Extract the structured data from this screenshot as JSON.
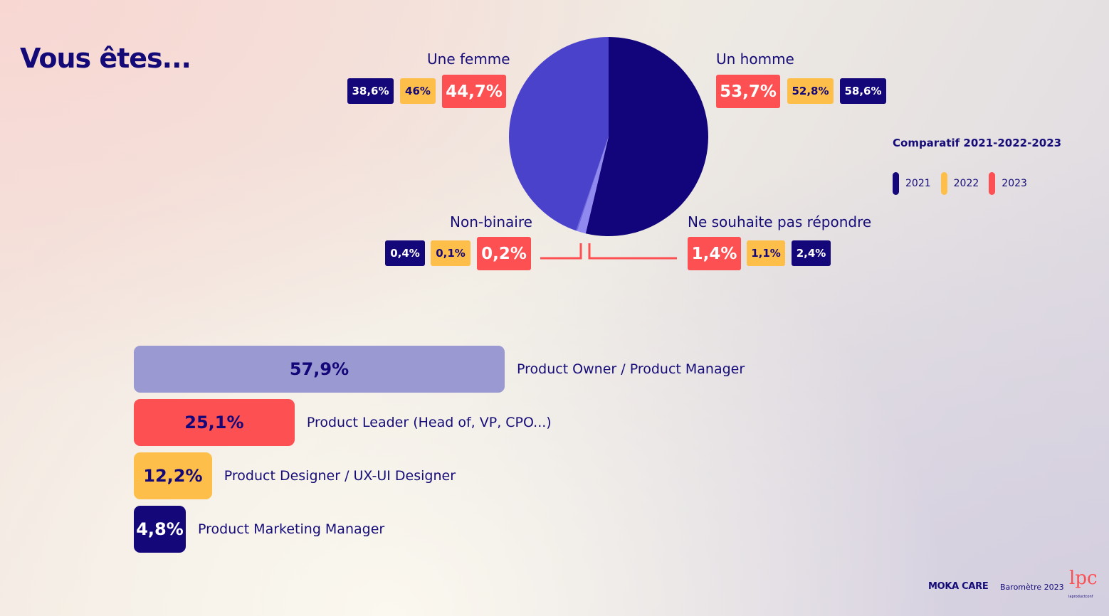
{
  "title": "Vous êtes...",
  "colors": {
    "y2021": "#14077a",
    "y2022": "#fdbf4a",
    "y2023": "#fd5052",
    "bar1": "#9b99d1"
  },
  "legend": {
    "title": "Comparatif 2021-2022-2023",
    "items": [
      "2021",
      "2022",
      "2023"
    ]
  },
  "gender": {
    "femme": {
      "label": "Une femme",
      "v2021": "38,6%",
      "v2022": "46%",
      "v2023": "44,7%"
    },
    "homme": {
      "label": "Un homme",
      "v2023": "53,7%",
      "v2022": "52,8%",
      "v2021": "58,6%"
    },
    "nonbin": {
      "label": "Non-binaire",
      "v2021": "0,4%",
      "v2022": "0,1%",
      "v2023": "0,2%"
    },
    "nesp": {
      "label": "Ne souhaite pas répondre",
      "v2023": "1,4%",
      "v2022": "1,1%",
      "v2021": "2,4%"
    }
  },
  "roles": [
    {
      "value": "57,9%",
      "label": "Product Owner / Product Manager"
    },
    {
      "value": "25,1%",
      "label": "Product Leader (Head of, VP, CPO...)"
    },
    {
      "value": "12,2%",
      "label": "Product Designer / UX-UI Designer"
    },
    {
      "value": "4,8%",
      "label": "Product Marketing Manager"
    }
  ],
  "footer": {
    "brand": "MOKA CARE",
    "edition": "Baromètre 2023",
    "logo": "lpc",
    "logo_sub": "laproductconf"
  },
  "chart_data": [
    {
      "type": "pie",
      "title": "",
      "series_year": "2023",
      "categories": [
        "Un homme",
        "Une femme",
        "Non-binaire",
        "Ne souhaite pas répondre"
      ],
      "values": [
        53.7,
        44.7,
        0.2,
        1.4
      ],
      "comparison": {
        "2021": [
          58.6,
          38.6,
          0.4,
          2.4
        ],
        "2022": [
          52.8,
          46,
          0.1,
          1.1
        ],
        "2023": [
          53.7,
          44.7,
          0.2,
          1.4
        ]
      },
      "colors": [
        "#12047a",
        "#4b42cc",
        "#6b63e0",
        "#8f89f0"
      ]
    },
    {
      "type": "bar",
      "orientation": "horizontal",
      "categories": [
        "Product Owner / Product Manager",
        "Product Leader (Head of, VP, CPO...)",
        "Product Designer / UX-UI Designer",
        "Product Marketing Manager"
      ],
      "values": [
        57.9,
        25.1,
        12.2,
        4.8
      ],
      "colors": [
        "#9b99d1",
        "#fd5052",
        "#fdbf4a",
        "#14077a"
      ]
    }
  ]
}
